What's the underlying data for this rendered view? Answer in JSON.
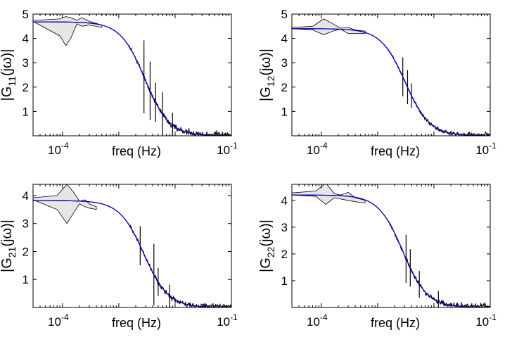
{
  "chart_data": [
    {
      "type": "line",
      "ylabel": "|G11(jω)|",
      "ylabel_parts": {
        "pre": "|G",
        "sub": "11",
        "post": "(jω)|"
      },
      "xlabel": "freq (Hz)",
      "xscale": "log",
      "xlim": [
        3e-05,
        0.1
      ],
      "ylim": [
        0,
        5
      ],
      "xticks": [
        {
          "base": "10",
          "exp": "-4",
          "value": 0.0001
        },
        {
          "base": "10",
          "exp": "-1",
          "value": 0.1
        }
      ],
      "yticks": [
        1,
        2,
        3,
        4,
        5
      ],
      "grid": false,
      "series": [
        {
          "role": "fit",
          "color": "#0000cc",
          "gain": 4.68,
          "corner_hz": 0.0029,
          "order": 2
        },
        {
          "role": "band",
          "color": "#000000",
          "fill": "#e6e6e6",
          "x": [
            3e-05,
            9e-05,
            0.000115,
            0.00014,
            0.00018,
            0.00022,
            0.0003,
            0.0005
          ],
          "upper": [
            4.74,
            4.8,
            4.9,
            4.85,
            4.75,
            4.85,
            4.7,
            4.55
          ],
          "lower": [
            4.7,
            4.1,
            3.7,
            4.0,
            4.6,
            4.5,
            4.55,
            4.45
          ]
        },
        {
          "role": "estimate",
          "color": "#000000",
          "noise": 0.1,
          "seed": 11,
          "spikes": [
            [
              0.0028,
              1.5
            ],
            [
              0.0036,
              1.2
            ],
            [
              0.0045,
              0.8
            ],
            [
              0.006,
              0.9
            ],
            [
              0.009,
              0.5
            ]
          ]
        }
      ]
    },
    {
      "type": "line",
      "ylabel": "|G12(jω)|",
      "ylabel_parts": {
        "pre": "|G",
        "sub": "12",
        "post": "(jω)|"
      },
      "xlabel": "freq (Hz)",
      "xscale": "log",
      "xlim": [
        3e-05,
        0.1
      ],
      "ylim": [
        0,
        5
      ],
      "xticks": [
        {
          "base": "10",
          "exp": "-4",
          "value": 0.0001
        },
        {
          "base": "10",
          "exp": "-1",
          "value": 0.1
        }
      ],
      "yticks": [
        1,
        2,
        3,
        4,
        5
      ],
      "grid": false,
      "series": [
        {
          "role": "fit",
          "color": "#0000cc",
          "gain": 4.4,
          "corner_hz": 0.0031,
          "order": 2
        },
        {
          "role": "band",
          "color": "#000000",
          "fill": "#e6e6e6",
          "x": [
            3e-05,
            7e-05,
            0.00011,
            0.00016,
            0.00022,
            0.0003,
            0.0004,
            0.0006
          ],
          "upper": [
            4.45,
            4.5,
            4.8,
            4.6,
            4.42,
            4.45,
            4.35,
            4.3
          ],
          "lower": [
            4.4,
            4.35,
            4.15,
            4.3,
            4.38,
            4.2,
            4.2,
            4.2
          ]
        },
        {
          "role": "estimate",
          "color": "#000000",
          "noise": 0.06,
          "seed": 12,
          "spikes": [
            [
              0.0028,
              0.8
            ],
            [
              0.0034,
              0.7
            ],
            [
              0.004,
              0.5
            ]
          ]
        }
      ]
    },
    {
      "type": "line",
      "ylabel": "|G21(jω)|",
      "ylabel_parts": {
        "pre": "|G",
        "sub": "21",
        "post": "(jω)|"
      },
      "xlabel": "freq (Hz)",
      "xscale": "log",
      "xlim": [
        3e-05,
        0.1
      ],
      "ylim": [
        0,
        4.4
      ],
      "xticks": [
        {
          "base": "10",
          "exp": "-4",
          "value": 0.0001
        },
        {
          "base": "10",
          "exp": "-1",
          "value": 0.1
        }
      ],
      "yticks": [
        1,
        2,
        3,
        4
      ],
      "grid": false,
      "series": [
        {
          "role": "fit",
          "color": "#0000cc",
          "gain": 3.82,
          "corner_hz": 0.0028,
          "order": 2
        },
        {
          "role": "band",
          "color": "#000000",
          "fill": "#e6e6e6",
          "x": [
            3e-05,
            8e-05,
            0.00012,
            0.00016,
            0.0002,
            0.00025,
            0.0003,
            0.0004
          ],
          "upper": [
            3.92,
            4.0,
            4.4,
            4.1,
            3.8,
            3.85,
            3.7,
            3.6
          ],
          "lower": [
            3.85,
            3.5,
            3.0,
            3.4,
            3.7,
            3.6,
            3.55,
            3.5
          ]
        },
        {
          "role": "estimate",
          "color": "#000000",
          "noise": 0.07,
          "seed": 21,
          "spikes": [
            [
              0.0024,
              0.7
            ],
            [
              0.0042,
              1.1
            ],
            [
              0.005,
              0.5
            ],
            [
              0.008,
              0.4
            ]
          ]
        }
      ]
    },
    {
      "type": "line",
      "ylabel": "|G22(jω)|",
      "ylabel_parts": {
        "pre": "|G",
        "sub": "22",
        "post": "(jω)|"
      },
      "xlabel": "freq (Hz)",
      "xscale": "log",
      "xlim": [
        3e-05,
        0.1
      ],
      "ylim": [
        0,
        4.6
      ],
      "xticks": [
        {
          "base": "10",
          "exp": "-4",
          "value": 0.0001
        },
        {
          "base": "10",
          "exp": "-1",
          "value": 0.1
        }
      ],
      "yticks": [
        1,
        2,
        3,
        4
      ],
      "grid": false,
      "series": [
        {
          "role": "fit",
          "color": "#0000cc",
          "gain": 4.2,
          "corner_hz": 0.0028,
          "order": 2
        },
        {
          "role": "band",
          "color": "#000000",
          "fill": "#e6e6e6",
          "x": [
            3e-05,
            8e-05,
            0.00012,
            0.00017,
            0.00022,
            0.0003,
            0.0004,
            0.0006
          ],
          "upper": [
            4.28,
            4.35,
            4.65,
            4.25,
            4.2,
            4.3,
            4.1,
            4.0
          ],
          "lower": [
            4.2,
            4.15,
            3.85,
            4.1,
            4.05,
            4.0,
            3.95,
            3.9
          ]
        },
        {
          "role": "estimate",
          "color": "#000000",
          "noise": 0.08,
          "seed": 22,
          "spikes": [
            [
              0.0032,
              0.9
            ],
            [
              0.0038,
              0.7
            ],
            [
              0.0055,
              0.5
            ],
            [
              0.012,
              0.4
            ]
          ]
        }
      ]
    }
  ]
}
